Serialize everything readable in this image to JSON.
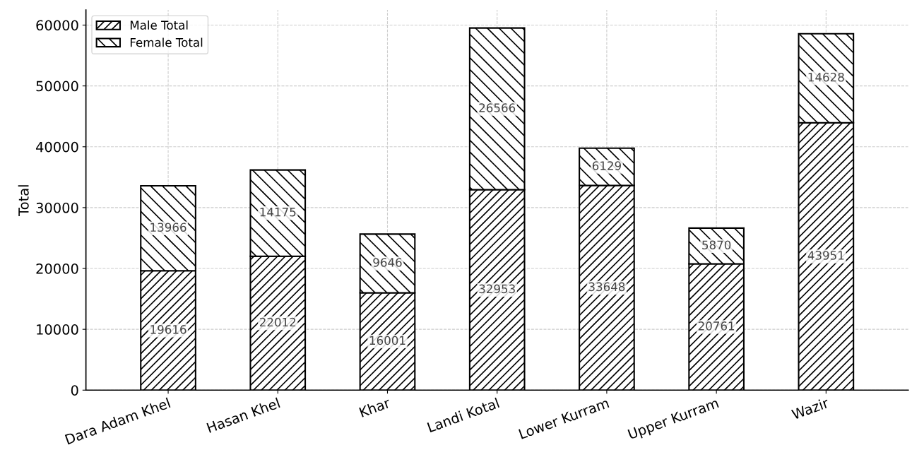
{
  "chart_data": {
    "type": "bar",
    "stacked": true,
    "ylabel": "Total",
    "categories": [
      "Dara Adam Khel",
      "Hasan Khel",
      "Khar",
      "Landi Kotal",
      "Lower Kurram",
      "Upper Kurram",
      "Wazir"
    ],
    "series": [
      {
        "name": "Male Total",
        "color": "#000000",
        "values": [
          19616,
          22012,
          16001,
          32953,
          33648,
          20761,
          43951
        ]
      },
      {
        "name": "Female Total",
        "color": "#000000",
        "values": [
          13966,
          14175,
          9646,
          26566,
          6129,
          5870,
          14628
        ]
      }
    ],
    "ylim": [
      0,
      62495
    ],
    "yticks": [
      0,
      10000,
      20000,
      30000,
      40000,
      50000,
      60000
    ],
    "grid": true,
    "legend": "top left",
    "data_labels": true
  }
}
